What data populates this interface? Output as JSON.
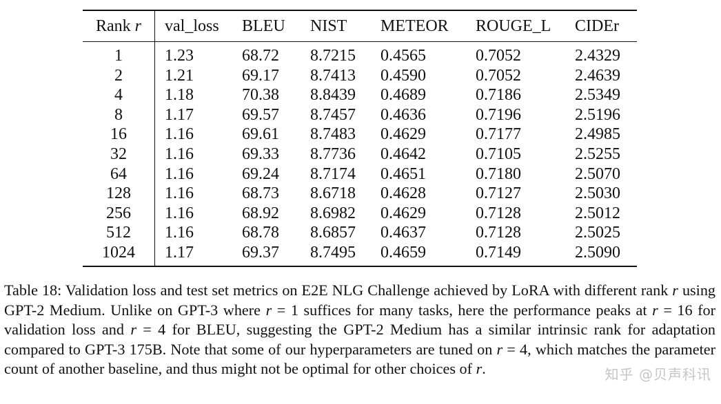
{
  "table": {
    "headers": {
      "rank": "Rank",
      "rank_var": "r",
      "val_loss": "val_loss",
      "bleu": "BLEU",
      "nist": "NIST",
      "meteor": "METEOR",
      "rouge": "ROUGE_L",
      "cider": "CIDEr"
    },
    "rows": [
      {
        "rank": "1",
        "val_loss": "1.23",
        "bleu": "68.72",
        "nist": "8.7215",
        "meteor": "0.4565",
        "rouge": "0.7052",
        "cider": "2.4329"
      },
      {
        "rank": "2",
        "val_loss": "1.21",
        "bleu": "69.17",
        "nist": "8.7413",
        "meteor": "0.4590",
        "rouge": "0.7052",
        "cider": "2.4639"
      },
      {
        "rank": "4",
        "val_loss": "1.18",
        "bleu": "70.38",
        "nist": "8.8439",
        "meteor": "0.4689",
        "rouge": "0.7186",
        "cider": "2.5349"
      },
      {
        "rank": "8",
        "val_loss": "1.17",
        "bleu": "69.57",
        "nist": "8.7457",
        "meteor": "0.4636",
        "rouge": "0.7196",
        "cider": "2.5196"
      },
      {
        "rank": "16",
        "val_loss": "1.16",
        "bleu": "69.61",
        "nist": "8.7483",
        "meteor": "0.4629",
        "rouge": "0.7177",
        "cider": "2.4985"
      },
      {
        "rank": "32",
        "val_loss": "1.16",
        "bleu": "69.33",
        "nist": "8.7736",
        "meteor": "0.4642",
        "rouge": "0.7105",
        "cider": "2.5255"
      },
      {
        "rank": "64",
        "val_loss": "1.16",
        "bleu": "69.24",
        "nist": "8.7174",
        "meteor": "0.4651",
        "rouge": "0.7180",
        "cider": "2.5070"
      },
      {
        "rank": "128",
        "val_loss": "1.16",
        "bleu": "68.73",
        "nist": "8.6718",
        "meteor": "0.4628",
        "rouge": "0.7127",
        "cider": "2.5030"
      },
      {
        "rank": "256",
        "val_loss": "1.16",
        "bleu": "68.92",
        "nist": "8.6982",
        "meteor": "0.4629",
        "rouge": "0.7128",
        "cider": "2.5012"
      },
      {
        "rank": "512",
        "val_loss": "1.16",
        "bleu": "68.78",
        "nist": "8.6857",
        "meteor": "0.4637",
        "rouge": "0.7128",
        "cider": "2.5025"
      },
      {
        "rank": "1024",
        "val_loss": "1.17",
        "bleu": "69.37",
        "nist": "8.7495",
        "meteor": "0.4659",
        "rouge": "0.7149",
        "cider": "2.5090"
      }
    ]
  },
  "caption": {
    "label": "Table 18:",
    "line1": "Validation loss and test set metrics on E2E NLG Challenge achieved by LoRA with different rank",
    "r1": "r",
    "line2": "using GPT-2 Medium. Unlike on GPT-3 where",
    "r2": "r",
    "eq1": "= 1",
    "line3": "suffices for many tasks, here the performance peaks at",
    "r3": "r",
    "eq2": "= 16",
    "line4": "for validation loss and",
    "r4": "r",
    "eq3": "= 4",
    "line5": "for BLEU, suggesting the GPT-2 Medium has a similar intrinsic rank for adaptation compared to GPT-3 175B. Note that some of our hyperparameters are tuned on",
    "r5": "r",
    "eq4": "= 4",
    "line6": ", which matches the parameter count of another baseline, and thus might not be optimal for other choices of",
    "r6": "r",
    "end": "."
  },
  "watermark": "知乎 @贝声科讯"
}
